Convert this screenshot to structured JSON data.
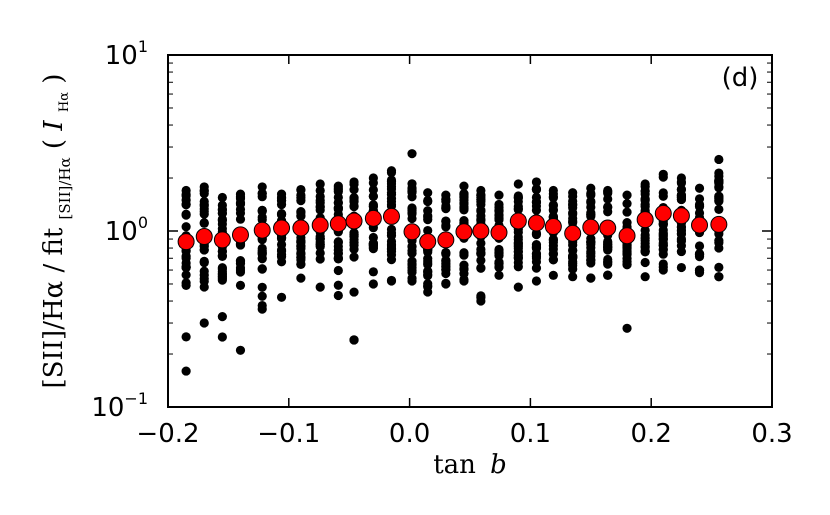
{
  "chart_data": {
    "type": "scatter",
    "panel_label": "(d)",
    "xlabel": {
      "tan": "tan",
      "b": "b"
    },
    "ylabel": {
      "main": "[SII]/Hα / fit",
      "sub": "[SII]/Hα",
      "paren_open": "(",
      "paren_close": ")",
      "i": "I",
      "i_sub": "Hα"
    },
    "xlim": [
      -0.2,
      0.3
    ],
    "ylim": [
      0.1,
      10
    ],
    "yscale": "log",
    "x_ticks": [
      "−0.2",
      "−0.1",
      "0.0",
      "0.1",
      "0.2",
      "0.3"
    ],
    "x_tick_values": [
      -0.2,
      -0.1,
      0.0,
      0.1,
      0.2,
      0.3
    ],
    "y_ticks": [
      {
        "value": 0.1,
        "base": "10",
        "exp": "−1"
      },
      {
        "value": 1,
        "base": "10",
        "exp": "0"
      },
      {
        "value": 10,
        "base": "10",
        "exp": "1"
      }
    ],
    "colors": {
      "points": "#000000",
      "binned": "#ff0000",
      "errorbar": "#ff0000"
    },
    "bins": [
      {
        "x": -0.185,
        "y": 0.87,
        "err": 0.05,
        "min": 0.16,
        "max": 1.7
      },
      {
        "x": -0.17,
        "y": 0.93,
        "err": 0.05,
        "min": 0.3,
        "max": 1.78
      },
      {
        "x": -0.155,
        "y": 0.89,
        "err": 0.05,
        "min": 0.25,
        "max": 1.55
      },
      {
        "x": -0.14,
        "y": 0.95,
        "err": 0.05,
        "min": 0.21,
        "max": 1.62
      },
      {
        "x": -0.122,
        "y": 1.01,
        "err": 0.05,
        "min": 0.36,
        "max": 1.78
      },
      {
        "x": -0.106,
        "y": 1.04,
        "err": 0.05,
        "min": 0.42,
        "max": 1.62
      },
      {
        "x": -0.09,
        "y": 1.04,
        "err": 0.05,
        "min": 0.54,
        "max": 1.72
      },
      {
        "x": -0.074,
        "y": 1.08,
        "err": 0.05,
        "min": 0.48,
        "max": 1.85
      },
      {
        "x": -0.059,
        "y": 1.1,
        "err": 0.05,
        "min": 0.43,
        "max": 1.8
      },
      {
        "x": -0.046,
        "y": 1.14,
        "err": 0.05,
        "min": 0.24,
        "max": 1.9
      },
      {
        "x": -0.03,
        "y": 1.18,
        "err": 0.06,
        "min": 0.5,
        "max": 2.0
      },
      {
        "x": -0.015,
        "y": 1.21,
        "err": 0.06,
        "min": 0.52,
        "max": 2.2
      },
      {
        "x": 0.002,
        "y": 0.99,
        "err": 0.05,
        "min": 0.52,
        "max": 2.75
      },
      {
        "x": 0.015,
        "y": 0.87,
        "err": 0.04,
        "min": 0.45,
        "max": 1.65
      },
      {
        "x": 0.03,
        "y": 0.89,
        "err": 0.04,
        "min": 0.5,
        "max": 1.6
      },
      {
        "x": 0.045,
        "y": 0.99,
        "err": 0.05,
        "min": 0.52,
        "max": 1.8
      },
      {
        "x": 0.059,
        "y": 1.0,
        "err": 0.05,
        "min": 0.4,
        "max": 1.7
      },
      {
        "x": 0.074,
        "y": 0.98,
        "err": 0.05,
        "min": 0.56,
        "max": 1.6
      },
      {
        "x": 0.09,
        "y": 1.14,
        "err": 0.06,
        "min": 0.48,
        "max": 1.85
      },
      {
        "x": 0.105,
        "y": 1.11,
        "err": 0.05,
        "min": 0.52,
        "max": 1.9
      },
      {
        "x": 0.119,
        "y": 1.06,
        "err": 0.05,
        "min": 0.56,
        "max": 1.7
      },
      {
        "x": 0.135,
        "y": 0.97,
        "err": 0.05,
        "min": 0.55,
        "max": 1.65
      },
      {
        "x": 0.15,
        "y": 1.05,
        "err": 0.05,
        "min": 0.54,
        "max": 1.75
      },
      {
        "x": 0.164,
        "y": 1.04,
        "err": 0.05,
        "min": 0.56,
        "max": 1.7
      },
      {
        "x": 0.18,
        "y": 0.94,
        "err": 0.05,
        "min": 0.28,
        "max": 1.6
      },
      {
        "x": 0.195,
        "y": 1.16,
        "err": 0.06,
        "min": 0.55,
        "max": 1.85
      },
      {
        "x": 0.21,
        "y": 1.26,
        "err": 0.06,
        "min": 0.6,
        "max": 2.1
      },
      {
        "x": 0.225,
        "y": 1.22,
        "err": 0.06,
        "min": 0.62,
        "max": 2.0
      },
      {
        "x": 0.24,
        "y": 1.08,
        "err": 0.05,
        "min": 0.58,
        "max": 1.75
      },
      {
        "x": 0.256,
        "y": 1.09,
        "err": 0.05,
        "min": 0.55,
        "max": 2.55
      }
    ]
  }
}
